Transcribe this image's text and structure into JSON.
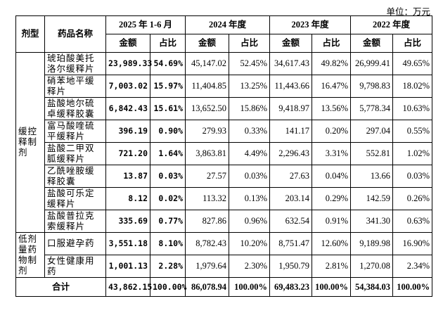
{
  "unit": "单位：万元",
  "header": {
    "type_col": "剂型",
    "name_col": "药品名称",
    "periods": [
      "2025 年 1-6 月",
      "2024 年度",
      "2023 年度",
      "2022 年度"
    ],
    "amount": "金额",
    "ratio": "占比"
  },
  "groups": [
    {
      "label": "缓控释制剂",
      "rows": [
        [
          "琥珀酸美托洛尔缓释片",
          "23,989.33",
          "54.69%",
          "45,147.02",
          "52.45%",
          "34,617.43",
          "49.82%",
          "26,999.41",
          "49.65%"
        ],
        [
          "硝苯地平缓释片",
          "7,003.02",
          "15.97%",
          "11,404.85",
          "13.25%",
          "11,443.66",
          "16.47%",
          "9,798.83",
          "18.02%"
        ],
        [
          "盐酸地尔硫卓缓释胶囊",
          "6,842.43",
          "15.61%",
          "13,652.50",
          "15.86%",
          "9,418.97",
          "13.56%",
          "5,778.34",
          "10.63%"
        ],
        [
          "富马酸喹硫平缓释片",
          "396.19",
          "0.90%",
          "279.93",
          "0.33%",
          "141.17",
          "0.20%",
          "297.04",
          "0.55%"
        ],
        [
          "盐酸二甲双胍缓释片",
          "721.20",
          "1.64%",
          "3,863.81",
          "4.49%",
          "2,296.43",
          "3.31%",
          "552.81",
          "1.02%"
        ],
        [
          "乙酰唑胺缓释胶囊",
          "13.87",
          "0.03%",
          "27.57",
          "0.03%",
          "27.63",
          "0.04%",
          "13.66",
          "0.03%"
        ],
        [
          "盐酸可乐定缓释片",
          "8.12",
          "0.02%",
          "113.32",
          "0.13%",
          "203.14",
          "0.29%",
          "142.59",
          "0.26%"
        ],
        [
          "盐酸普拉克索缓释片",
          "335.69",
          "0.77%",
          "827.86",
          "0.96%",
          "632.54",
          "0.91%",
          "341.30",
          "0.63%"
        ]
      ]
    },
    {
      "label": "低剂量药物制剂",
      "rows": [
        [
          "口服避孕药",
          "3,551.18",
          "8.10%",
          "8,782.43",
          "10.20%",
          "8,751.47",
          "12.60%",
          "9,189.98",
          "16.90%"
        ],
        [
          "女性健康用药",
          "1,001.13",
          "2.28%",
          "1,979.64",
          "2.30%",
          "1,950.79",
          "2.81%",
          "1,270.08",
          "2.34%"
        ]
      ]
    }
  ],
  "total": [
    "合计",
    "43,862.15",
    "100.00%",
    "86,078.94",
    "100.00%",
    "69,483.23",
    "100.00%",
    "54,384.03",
    "100.00%"
  ]
}
